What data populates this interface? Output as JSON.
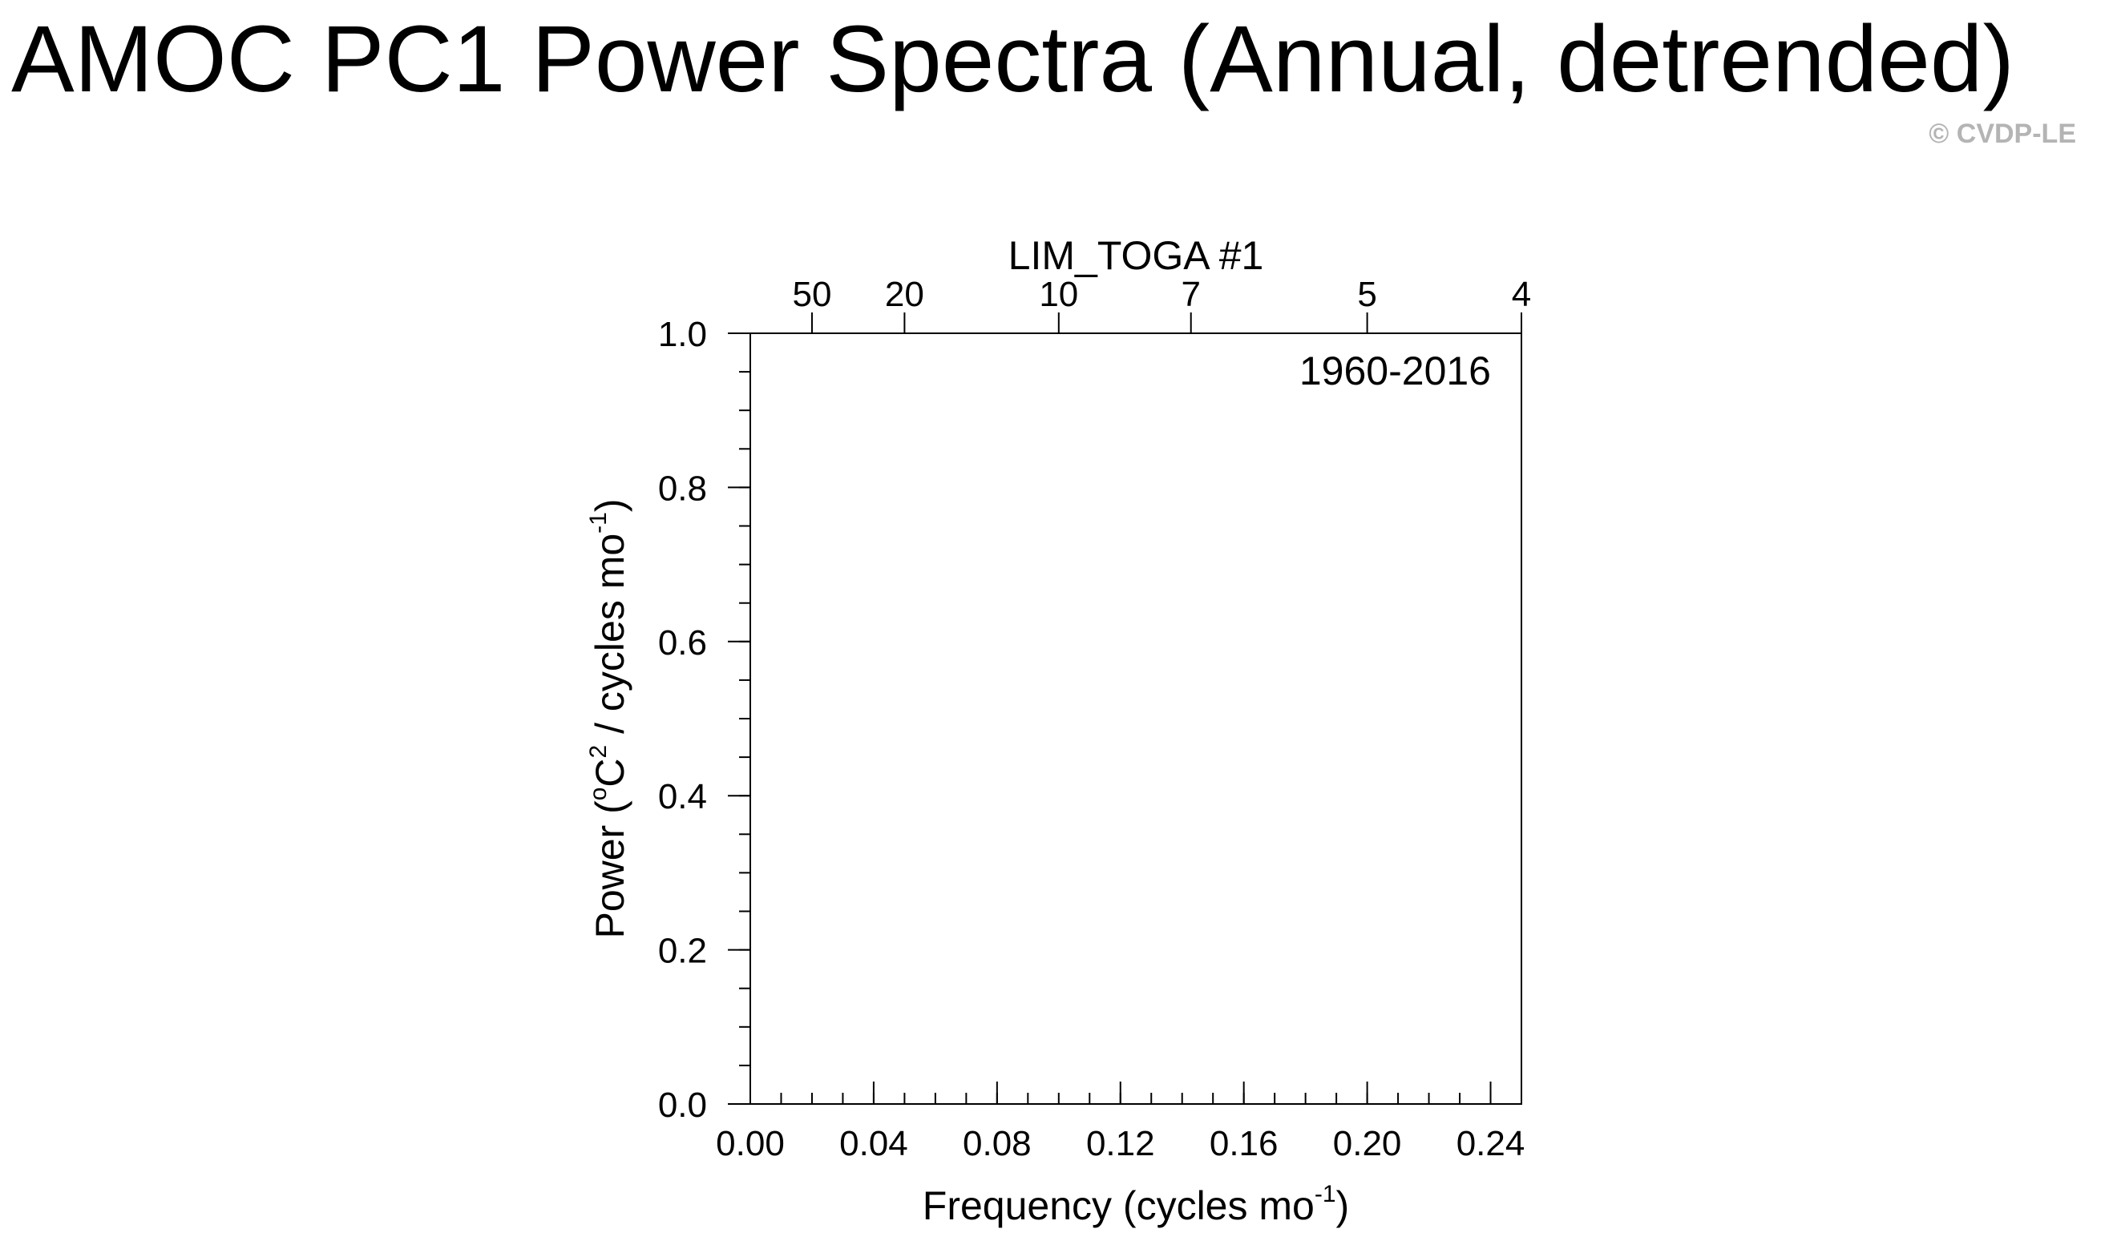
{
  "header": {
    "title": "AMOC PC1 Power Spectra (Annual, detrended)",
    "watermark": "© CVDP-LE"
  },
  "chart_data": {
    "type": "line",
    "panel_title": "LIM_TOGA #1",
    "period_label": "1960-2016",
    "xlabel": {
      "text": "Frequency (cycles mo",
      "sup": "-1",
      "suffix": ")"
    },
    "ylabel": {
      "prefix": "Power (",
      "degree": "o",
      "unit": "C",
      "unit_sup": "2",
      "middle": " / cycles mo",
      "sup": "-1",
      "suffix": ")"
    },
    "xlim": [
      0.0,
      0.25
    ],
    "ylim": [
      0.0,
      1.0
    ],
    "x_ticks": [
      {
        "value": 0.0,
        "label": "0.00"
      },
      {
        "value": 0.04,
        "label": "0.04"
      },
      {
        "value": 0.08,
        "label": "0.08"
      },
      {
        "value": 0.12,
        "label": "0.12"
      },
      {
        "value": 0.16,
        "label": "0.16"
      },
      {
        "value": 0.2,
        "label": "0.20"
      },
      {
        "value": 0.24,
        "label": "0.24"
      }
    ],
    "y_ticks": [
      {
        "value": 0.0,
        "label": "0.0"
      },
      {
        "value": 0.2,
        "label": "0.2"
      },
      {
        "value": 0.4,
        "label": "0.4"
      },
      {
        "value": 0.6,
        "label": "0.6"
      },
      {
        "value": 0.8,
        "label": "0.8"
      },
      {
        "value": 1.0,
        "label": "1.0"
      }
    ],
    "x_minor_step": 0.01,
    "y_minor_step": 0.05,
    "top_axis_periods": [
      {
        "label": "50",
        "period": 50
      },
      {
        "label": "20",
        "period": 20
      },
      {
        "label": "10",
        "period": 10
      },
      {
        "label": "7",
        "period": 7
      },
      {
        "label": "5",
        "period": 5
      },
      {
        "label": "4",
        "period": 4
      }
    ],
    "series": []
  }
}
